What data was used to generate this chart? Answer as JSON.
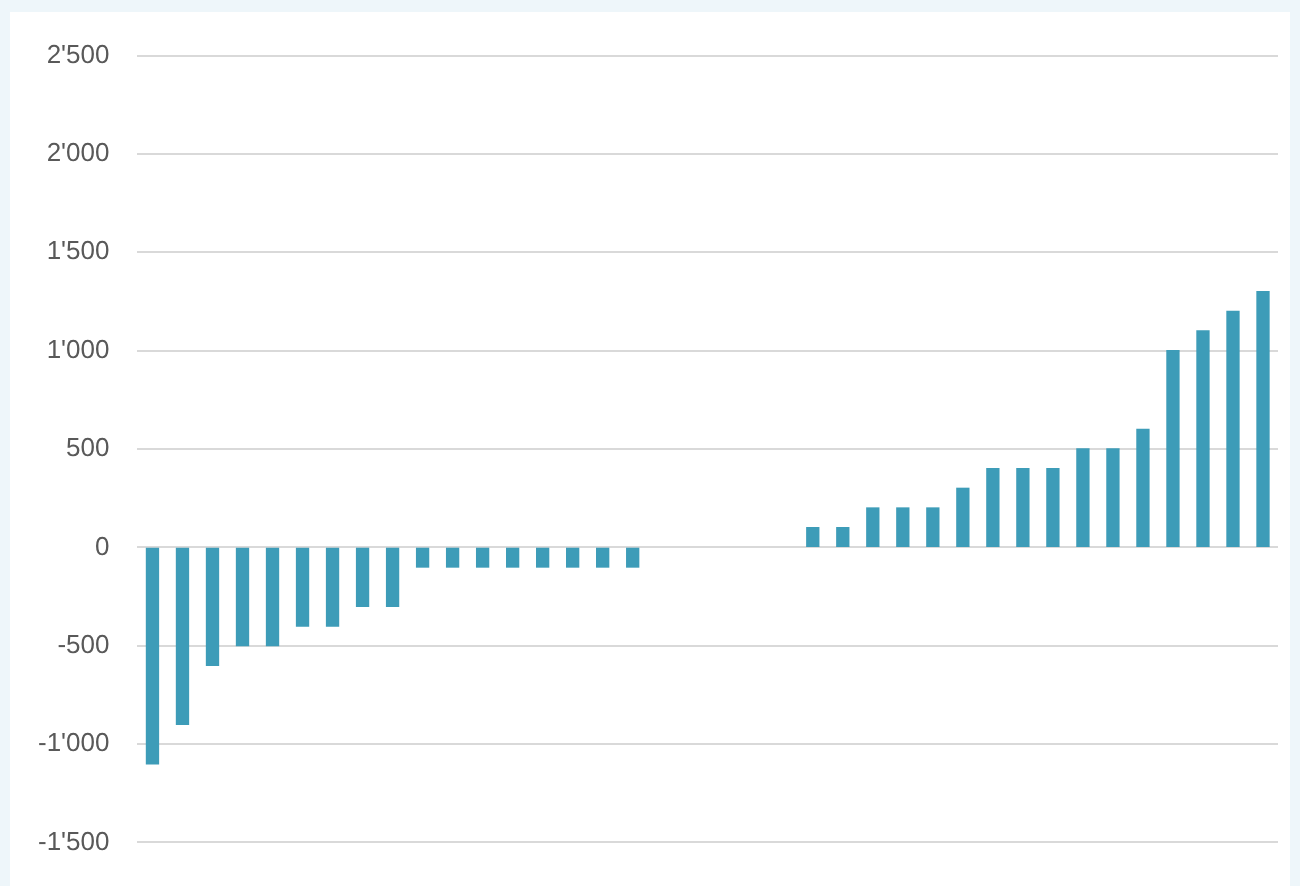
{
  "chart_data": {
    "type": "bar",
    "categories": [
      null,
      null,
      null,
      null,
      null,
      null,
      null,
      null,
      null,
      null,
      null,
      null,
      null,
      null,
      null,
      null,
      null,
      null,
      null,
      null,
      null,
      null,
      null,
      null,
      null,
      null,
      null,
      null,
      null,
      null,
      null,
      null,
      null,
      null,
      null,
      null,
      null,
      null
    ],
    "values": [
      -1100,
      -900,
      -600,
      -500,
      -500,
      -400,
      -400,
      -300,
      -300,
      -100,
      -100,
      -100,
      -100,
      -100,
      -100,
      -100,
      -100,
      null,
      null,
      null,
      null,
      null,
      100,
      100,
      200,
      200,
      200,
      300,
      400,
      400,
      400,
      500,
      500,
      600,
      1000,
      1100,
      1200,
      1300
    ],
    "color": "#3d9cb8",
    "ylim": [
      -1500,
      2500
    ],
    "yticks": [
      {
        "value": -1500,
        "label": "-1'500"
      },
      {
        "value": -1000,
        "label": "-1'000"
      },
      -500,
      0,
      500,
      {
        "value": 1000,
        "label": "1'000"
      },
      {
        "value": 1500,
        "label": "1'500"
      },
      {
        "value": 2000,
        "label": "2'000"
      },
      {
        "value": 2500,
        "label": "2'500"
      }
    ],
    "grid": "y",
    "tick_labels": "y"
  }
}
